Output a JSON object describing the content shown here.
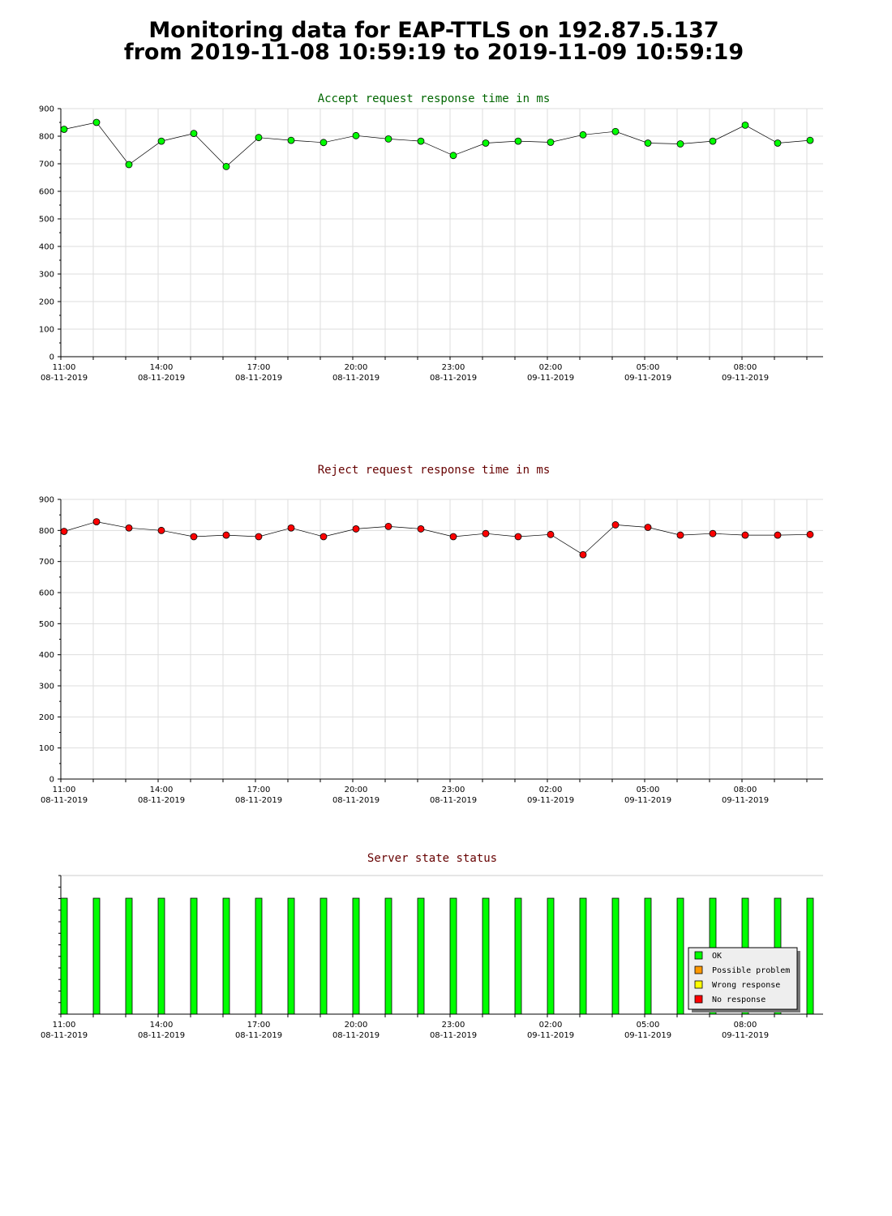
{
  "page": {
    "title_line1": "Monitoring data for EAP-TTLS on 192.87.5.137",
    "title_line2": "from 2019-11-08 10:59:19 to 2019-11-09 10:59:19"
  },
  "colors": {
    "accept_title": "#006600",
    "reject_title": "#660000",
    "status_title": "#660000",
    "accept_marker": "#00ff00",
    "reject_marker": "#ff0000",
    "ok": "#00ff00",
    "possible_problem": "#ff9900",
    "wrong_response": "#ffff00",
    "no_response": "#ff0000",
    "grid": "#dddddd"
  },
  "chart_data": [
    {
      "type": "line",
      "title": "Accept request response time in ms",
      "xlabel": "",
      "ylabel": "",
      "ylim": [
        0,
        900
      ],
      "yticks": [
        0,
        100,
        200,
        300,
        400,
        500,
        600,
        700,
        800,
        900
      ],
      "x_tick_labels": [
        {
          "time": "11:00",
          "date": "08-11-2019"
        },
        {
          "time": "14:00",
          "date": "08-11-2019"
        },
        {
          "time": "17:00",
          "date": "08-11-2019"
        },
        {
          "time": "20:00",
          "date": "08-11-2019"
        },
        {
          "time": "23:00",
          "date": "08-11-2019"
        },
        {
          "time": "02:00",
          "date": "09-11-2019"
        },
        {
          "time": "05:00",
          "date": "09-11-2019"
        },
        {
          "time": "08:00",
          "date": "09-11-2019"
        }
      ],
      "x": [
        "2019-11-08 11:06",
        "2019-11-08 12:06",
        "2019-11-08 13:06",
        "2019-11-08 14:06",
        "2019-11-08 15:06",
        "2019-11-08 16:06",
        "2019-11-08 17:06",
        "2019-11-08 18:06",
        "2019-11-08 19:06",
        "2019-11-08 20:06",
        "2019-11-08 21:06",
        "2019-11-08 22:06",
        "2019-11-08 23:06",
        "2019-11-09 00:06",
        "2019-11-09 01:06",
        "2019-11-09 02:06",
        "2019-11-09 03:06",
        "2019-11-09 04:06",
        "2019-11-09 05:06",
        "2019-11-09 06:06",
        "2019-11-09 07:06",
        "2019-11-09 08:06",
        "2019-11-09 09:06",
        "2019-11-09 10:06"
      ],
      "values": [
        825,
        850,
        697,
        782,
        810,
        690,
        795,
        785,
        777,
        802,
        790,
        782,
        730,
        775,
        782,
        778,
        805,
        817,
        775,
        772,
        782,
        840,
        775,
        785
      ],
      "grid": true
    },
    {
      "type": "line",
      "title": "Reject request response time in ms",
      "xlabel": "",
      "ylabel": "",
      "ylim": [
        0,
        900
      ],
      "yticks": [
        0,
        100,
        200,
        300,
        400,
        500,
        600,
        700,
        800,
        900
      ],
      "x_tick_labels": [
        {
          "time": "11:00",
          "date": "08-11-2019"
        },
        {
          "time": "14:00",
          "date": "08-11-2019"
        },
        {
          "time": "17:00",
          "date": "08-11-2019"
        },
        {
          "time": "20:00",
          "date": "08-11-2019"
        },
        {
          "time": "23:00",
          "date": "08-11-2019"
        },
        {
          "time": "02:00",
          "date": "09-11-2019"
        },
        {
          "time": "05:00",
          "date": "09-11-2019"
        },
        {
          "time": "08:00",
          "date": "09-11-2019"
        }
      ],
      "x": [
        "2019-11-08 11:06",
        "2019-11-08 12:06",
        "2019-11-08 13:06",
        "2019-11-08 14:06",
        "2019-11-08 15:06",
        "2019-11-08 16:06",
        "2019-11-08 17:06",
        "2019-11-08 18:06",
        "2019-11-08 19:06",
        "2019-11-08 20:06",
        "2019-11-08 21:06",
        "2019-11-08 22:06",
        "2019-11-08 23:06",
        "2019-11-09 00:06",
        "2019-11-09 01:06",
        "2019-11-09 02:06",
        "2019-11-09 03:06",
        "2019-11-09 04:06",
        "2019-11-09 05:06",
        "2019-11-09 06:06",
        "2019-11-09 07:06",
        "2019-11-09 08:06",
        "2019-11-09 09:06",
        "2019-11-09 10:06"
      ],
      "values": [
        797,
        828,
        808,
        800,
        780,
        785,
        780,
        808,
        780,
        805,
        813,
        805,
        780,
        790,
        780,
        787,
        722,
        818,
        810,
        785,
        790,
        785,
        785,
        787
      ],
      "grid": true
    },
    {
      "type": "bar",
      "title": "Server state status",
      "xlabel": "",
      "ylabel": "",
      "x_tick_labels": [
        {
          "time": "11:00",
          "date": "08-11-2019"
        },
        {
          "time": "14:00",
          "date": "08-11-2019"
        },
        {
          "time": "17:00",
          "date": "08-11-2019"
        },
        {
          "time": "20:00",
          "date": "08-11-2019"
        },
        {
          "time": "23:00",
          "date": "08-11-2019"
        },
        {
          "time": "02:00",
          "date": "09-11-2019"
        },
        {
          "time": "05:00",
          "date": "09-11-2019"
        },
        {
          "time": "08:00",
          "date": "09-11-2019"
        }
      ],
      "x": [
        "2019-11-08 11:06",
        "2019-11-08 12:06",
        "2019-11-08 13:06",
        "2019-11-08 14:06",
        "2019-11-08 15:06",
        "2019-11-08 16:06",
        "2019-11-08 17:06",
        "2019-11-08 18:06",
        "2019-11-08 19:06",
        "2019-11-08 20:06",
        "2019-11-08 21:06",
        "2019-11-08 22:06",
        "2019-11-08 23:06",
        "2019-11-09 00:06",
        "2019-11-09 01:06",
        "2019-11-09 02:06",
        "2019-11-09 03:06",
        "2019-11-09 04:06",
        "2019-11-09 05:06",
        "2019-11-09 06:06",
        "2019-11-09 07:06",
        "2019-11-09 08:06",
        "2019-11-09 09:06",
        "2019-11-09 10:06"
      ],
      "states": [
        "OK",
        "OK",
        "OK",
        "OK",
        "OK",
        "OK",
        "OK",
        "OK",
        "OK",
        "OK",
        "OK",
        "OK",
        "OK",
        "OK",
        "OK",
        "OK",
        "OK",
        "OK",
        "OK",
        "OK",
        "OK",
        "OK",
        "OK",
        "OK"
      ],
      "legend": [
        {
          "label": "OK",
          "color": "#00ff00"
        },
        {
          "label": "Possible problem",
          "color": "#ff9900"
        },
        {
          "label": "Wrong response",
          "color": "#ffff00"
        },
        {
          "label": "No response",
          "color": "#ff0000"
        }
      ],
      "legend_position": "bottom-right",
      "grid": false
    }
  ]
}
